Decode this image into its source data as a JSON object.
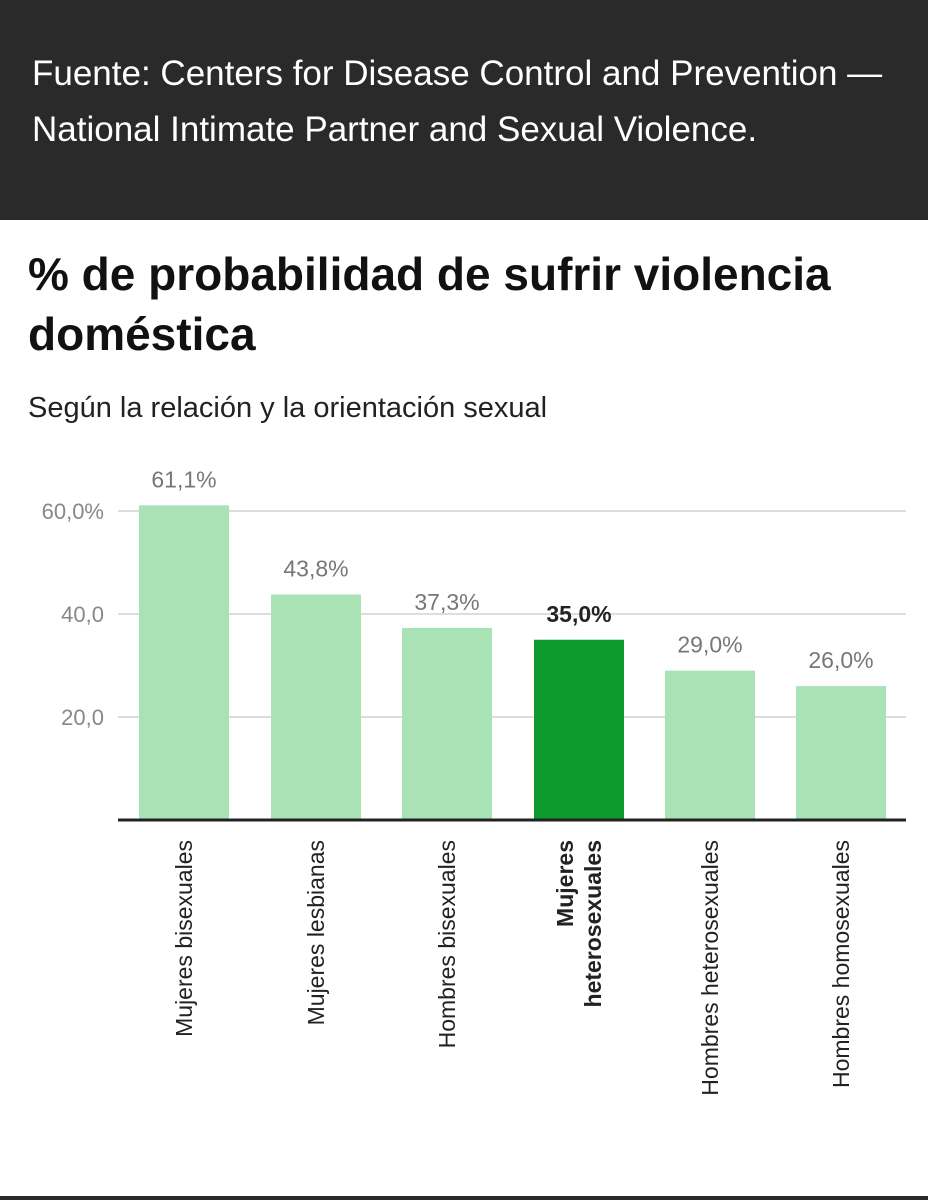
{
  "header": {
    "source_text": "Fuente: Centers for Disease Control and Prevention — National Intimate Partner and Sexual Violence."
  },
  "chart_data": {
    "type": "bar",
    "title": "% de probabilidad de sufrir violencia doméstica",
    "subtitle": "Según la relación y la orientación sexual",
    "categories": [
      "Mujeres bisexuales",
      "Mujeres lesbianas",
      "Hombres bisexuales",
      "Mujeres heterosexuales",
      "Hombres heterosexuales",
      "Hombres homosexuales"
    ],
    "values": [
      61.1,
      43.8,
      37.3,
      35.0,
      29.0,
      26.0
    ],
    "value_labels": [
      "61,1%",
      "43,8%",
      "37,3%",
      "35,0%",
      "29,0%",
      "26,0%"
    ],
    "highlight_index": 3,
    "category_label_lines": [
      [
        "Mujeres bisexuales"
      ],
      [
        "Mujeres lesbianas"
      ],
      [
        "Hombres bisexuales"
      ],
      [
        "Mujeres",
        "heterosexuales"
      ],
      [
        "Hombres heterosexuales"
      ],
      [
        "Hombres homosexuales"
      ]
    ],
    "y_ticks": [
      20,
      40,
      60
    ],
    "y_tick_labels": [
      "20,0",
      "40,0",
      "60,0%"
    ],
    "ylim": [
      0,
      60
    ],
    "grid": true,
    "colors": {
      "bar": "#a8e2b5",
      "highlight": "#0f9a2e",
      "grid": "#dddddd",
      "axis": "#222222",
      "value_label": "#777777",
      "highlight_label": "#222222",
      "tick_label": "#888888"
    }
  }
}
